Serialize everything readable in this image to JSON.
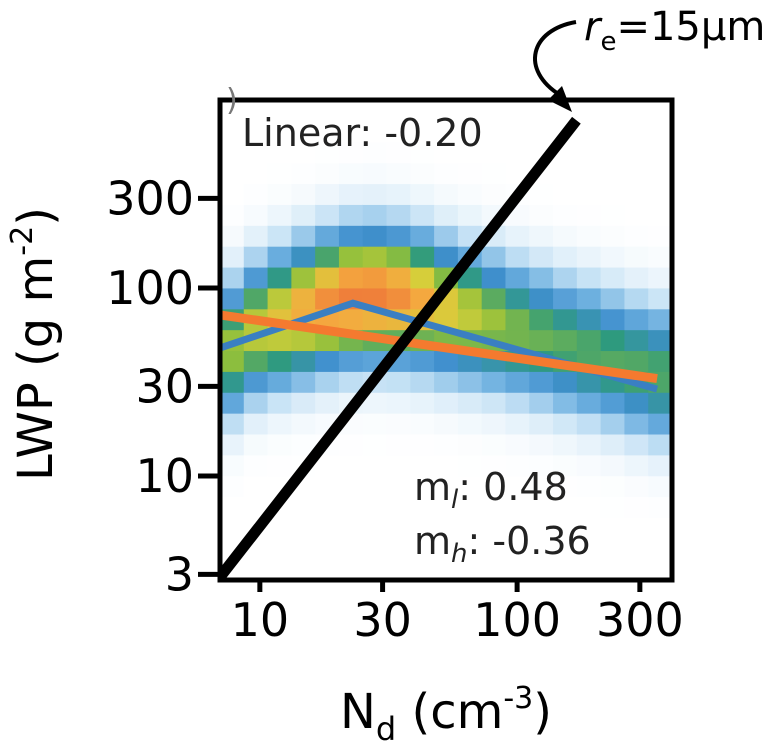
{
  "chart_data": {
    "type": "heatmap",
    "x_axis": {
      "scale": "log",
      "range": [
        7,
        400
      ],
      "ticks": [
        10,
        30,
        100,
        300
      ],
      "tick_labels": [
        "10",
        "30",
        "100",
        "300"
      ],
      "label_main": "N",
      "label_sub": "d",
      "label_units": " (cm",
      "label_exp": "-3",
      "label_close": ")"
    },
    "y_axis": {
      "scale": "log",
      "range": [
        2.8,
        1000
      ],
      "ticks": [
        3,
        10,
        30,
        100,
        300
      ],
      "tick_labels": [
        "3",
        "10",
        "30",
        "100",
        "300"
      ],
      "label_main": "LWP (g m",
      "label_exp": "-2",
      "label_close": ")"
    },
    "grid": false,
    "heatmap": {
      "x_bins": 19,
      "y_bins": 23,
      "ridge_centers_lwp": [
        48,
        60,
        68,
        76,
        84,
        90,
        92,
        90,
        85,
        78,
        72,
        66,
        60,
        55,
        50,
        46,
        42,
        38,
        35
      ],
      "colormap": [
        "#ffffff",
        "#c6e2f5",
        "#6fb1e0",
        "#3f8fcd",
        "#2e9a7e",
        "#8fbf3c",
        "#d6cf3a",
        "#f4a93f",
        "#ef7d3a"
      ]
    },
    "series": [
      {
        "kind": "binned_median",
        "color": "#3a7fc2",
        "x": [
          7,
          23,
          350
        ],
        "y": [
          48,
          83,
          29
        ]
      },
      {
        "kind": "linear_fit",
        "color": "#f47a2f",
        "x": [
          7,
          350
        ],
        "y": [
          72,
          33
        ]
      },
      {
        "kind": "constant_re_line",
        "color": "#000000",
        "x": [
          7,
          170
        ],
        "y": [
          2.9,
          780
        ]
      }
    ],
    "annotations": {
      "linear": "Linear: -0.20",
      "ml_prefix": "m",
      "ml_sub": "l",
      "ml_value": ": 0.48",
      "mh_prefix": "m",
      "mh_sub": "h",
      "mh_value": ": -0.36",
      "re_prefix": "r",
      "re_sub": "e",
      "re_value": "=15μm",
      "partial_letter": ")"
    }
  }
}
